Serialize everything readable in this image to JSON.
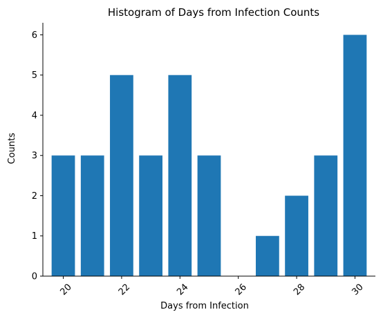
{
  "chart_data": {
    "type": "bar",
    "title": "Histogram of Days from Infection Counts",
    "xlabel": "Days from Infection",
    "ylabel": "Counts",
    "x": [
      20,
      21,
      22,
      23,
      24,
      25,
      26,
      27,
      28,
      29,
      30
    ],
    "values": [
      3,
      3,
      5,
      3,
      5,
      3,
      0,
      1,
      2,
      3,
      6
    ],
    "xlim": [
      19.3,
      30.7
    ],
    "ylim": [
      0,
      6.3
    ],
    "xticks": [
      20,
      22,
      24,
      26,
      28,
      30
    ],
    "yticks": [
      0,
      1,
      2,
      3,
      4,
      5,
      6
    ],
    "xtick_rotation": 45,
    "grid": false,
    "bar_color": "#1f77b4",
    "spines": "left-bottom"
  }
}
